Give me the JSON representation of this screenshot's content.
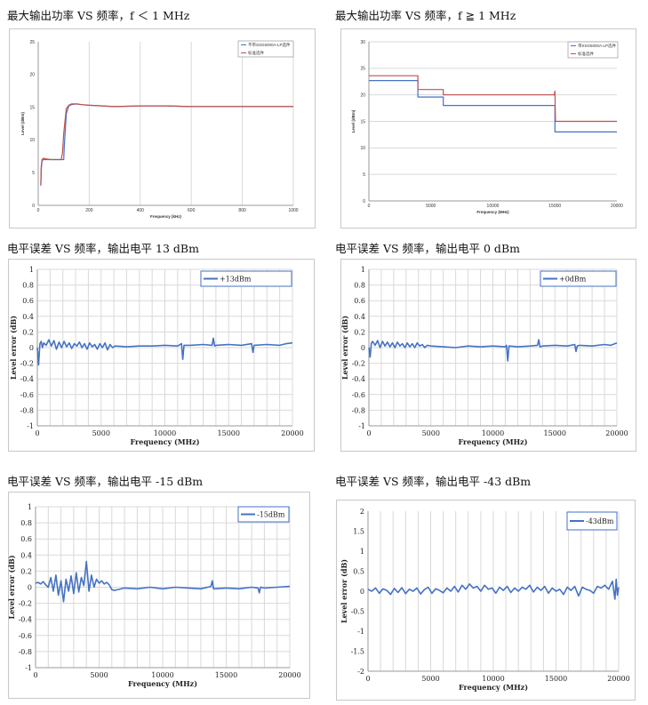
{
  "headings": [
    "最大输出功率 VS 频率，f ＜ 1 MHz",
    "最大输出功率 VS 频率，f ≧ 1 MHz",
    "电平误差 VS 频率，输出电平 13 dBm",
    "电平误差 VS 频率，输出电平 0 dBm",
    "电平误差 VS 频率，输出电平 -15 dBm",
    "电平误差 VS 频率，输出电平 -43 dBm"
  ],
  "colors": {
    "blue": "#4472c4",
    "red": "#c0504d",
    "grid": "#d9d9d9"
  },
  "chart_data": [
    {
      "type": "line",
      "title": "",
      "xlabel": "Frequency (kHz)",
      "ylabel": "Level (dBm)",
      "xlim": [
        0,
        1000
      ],
      "ylim": [
        0,
        25
      ],
      "xticks": [
        "0",
        "200",
        "400",
        "600",
        "800",
        "1000"
      ],
      "yticks": [
        "0",
        "5",
        "10",
        "15",
        "20",
        "25"
      ],
      "legend_position": "top-right",
      "grid": "vertical",
      "series": [
        {
          "name": "不带SSG5000A-LP选件",
          "color": "blue",
          "x": [
            10,
            12,
            15,
            20,
            30,
            50,
            70,
            90,
            100,
            102,
            110,
            120,
            130,
            150,
            170,
            200,
            250,
            300,
            400,
            500,
            600,
            700,
            800,
            900,
            1000
          ],
          "y": [
            3.0,
            5.5,
            6.8,
            7.0,
            7.0,
            7.0,
            7.0,
            7.0,
            7.0,
            9.0,
            14.0,
            15.2,
            15.4,
            15.5,
            15.4,
            15.3,
            15.2,
            15.1,
            15.2,
            15.2,
            15.1,
            15.1,
            15.1,
            15.1,
            15.1
          ]
        },
        {
          "name": "标准选件",
          "color": "red",
          "x": [
            10,
            12,
            15,
            20,
            30,
            50,
            70,
            90,
            95,
            100,
            110,
            120,
            130,
            150,
            170,
            200,
            250,
            300,
            400,
            500,
            600,
            700,
            800,
            900,
            1000
          ],
          "y": [
            3.2,
            6.0,
            7.0,
            7.2,
            7.1,
            7.0,
            7.0,
            7.0,
            8.0,
            11.0,
            14.8,
            15.3,
            15.5,
            15.5,
            15.4,
            15.3,
            15.2,
            15.1,
            15.2,
            15.2,
            15.1,
            15.1,
            15.1,
            15.1,
            15.1
          ]
        }
      ]
    },
    {
      "type": "line",
      "title": "",
      "xlabel": "Frequency (MHz)",
      "ylabel": "Level (dBm)",
      "xlim": [
        0,
        20000
      ],
      "ylim": [
        0,
        30
      ],
      "xticks": [
        "0",
        "5000",
        "10000",
        "15000",
        "20000"
      ],
      "yticks": [
        "0",
        "5",
        "10",
        "15",
        "20",
        "25",
        "30"
      ],
      "legend_position": "top-right",
      "grid": "horizontal",
      "series": [
        {
          "name": "带SSG5000A-LP选件",
          "color": "blue",
          "x": [
            0,
            3950,
            3950,
            6000,
            6000,
            15000,
            15000,
            20000
          ],
          "y": [
            22.7,
            22.7,
            19.6,
            19.6,
            18.0,
            18.0,
            13.0,
            13.0
          ]
        },
        {
          "name": "标准选件",
          "color": "red",
          "x": [
            0,
            3950,
            3950,
            6000,
            6000,
            14950,
            15000,
            15050,
            20000
          ],
          "y": [
            23.6,
            23.6,
            21.0,
            21.0,
            20.0,
            20.0,
            20.7,
            15.0,
            15.0
          ]
        }
      ]
    },
    {
      "type": "line",
      "title": "",
      "xlabel": "Frequency (MHz)",
      "ylabel": "Level error (dB)",
      "xlim": [
        0,
        20000
      ],
      "ylim": [
        -1,
        1
      ],
      "xticks": [
        "0",
        "5000",
        "10000",
        "15000",
        "20000"
      ],
      "yticks": [
        "1",
        "0.8",
        "0.6",
        "0.4",
        "0.2",
        "0",
        "-0.2",
        "-0.4",
        "-0.6",
        "-0.8",
        "-1"
      ],
      "legend_position": "top-right",
      "grid": "both",
      "series": [
        {
          "name": "+13dBm",
          "color": "blue",
          "x": [
            0,
            100,
            200,
            300,
            400,
            500,
            700,
            900,
            1100,
            1300,
            1500,
            1700,
            1900,
            2100,
            2300,
            2500,
            2700,
            2900,
            3100,
            3300,
            3500,
            3700,
            3900,
            4100,
            4300,
            4500,
            4700,
            4900,
            5100,
            5300,
            5500,
            5700,
            5900,
            6100,
            7000,
            8000,
            9000,
            10000,
            11000,
            11300,
            11400,
            11500,
            12000,
            13000,
            13700,
            13800,
            13900,
            14000,
            15000,
            16000,
            16800,
            16900,
            17000,
            18000,
            19000,
            19500,
            20000
          ],
          "y": [
            0.0,
            -0.22,
            0.05,
            0.08,
            0.0,
            0.06,
            0.03,
            0.1,
            0.02,
            0.09,
            -0.02,
            0.07,
            0.0,
            0.08,
            0.01,
            0.06,
            -0.01,
            0.05,
            0.02,
            0.07,
            0.0,
            0.05,
            -0.02,
            0.06,
            0.01,
            0.04,
            -0.02,
            0.05,
            0.0,
            0.06,
            -0.03,
            0.04,
            0.0,
            0.02,
            0.01,
            0.02,
            0.02,
            0.03,
            0.02,
            0.05,
            -0.15,
            0.03,
            0.03,
            0.04,
            0.03,
            0.12,
            0.02,
            0.03,
            0.04,
            0.03,
            0.05,
            -0.06,
            0.03,
            0.04,
            0.03,
            0.05,
            0.06
          ]
        }
      ]
    },
    {
      "type": "line",
      "title": "",
      "xlabel": "Frequency (MHz)",
      "ylabel": "Level error (dB)",
      "xlim": [
        0,
        20000
      ],
      "ylim": [
        -1,
        1
      ],
      "xticks": [
        "0",
        "5000",
        "10000",
        "15000",
        "20000"
      ],
      "yticks": [
        "1",
        "0.8",
        "0.6",
        "0.4",
        "0.2",
        "0",
        "-0.2",
        "-0.4",
        "-0.6",
        "-0.8",
        "-1"
      ],
      "legend_position": "top-right",
      "grid": "both",
      "series": [
        {
          "name": "+0dBm",
          "color": "blue",
          "x": [
            0,
            100,
            200,
            300,
            500,
            700,
            900,
            1100,
            1300,
            1500,
            1700,
            1900,
            2100,
            2300,
            2500,
            2700,
            2900,
            3100,
            3300,
            3500,
            3700,
            3900,
            4100,
            4300,
            4500,
            4700,
            5000,
            6000,
            7000,
            8000,
            9000,
            10000,
            11000,
            11100,
            11200,
            11300,
            12000,
            13000,
            13600,
            13700,
            13800,
            14000,
            15000,
            16000,
            16600,
            16700,
            16800,
            17000,
            18000,
            19000,
            19500,
            20000
          ],
          "y": [
            0.0,
            -0.12,
            0.06,
            0.08,
            0.03,
            0.09,
            0.0,
            0.08,
            0.02,
            0.07,
            0.01,
            0.06,
            0.0,
            0.07,
            0.02,
            0.05,
            0.0,
            0.06,
            0.01,
            0.05,
            0.0,
            0.06,
            0.02,
            0.04,
            0.0,
            0.03,
            0.02,
            0.01,
            0.0,
            0.02,
            0.01,
            0.02,
            0.01,
            0.03,
            -0.17,
            0.02,
            0.01,
            0.02,
            0.03,
            0.1,
            0.01,
            0.02,
            0.03,
            0.02,
            0.04,
            -0.05,
            0.02,
            0.03,
            0.02,
            0.04,
            0.03,
            0.06
          ]
        }
      ]
    },
    {
      "type": "line",
      "title": "",
      "xlabel": "Frequency (MHz)",
      "ylabel": "Level error (dB)",
      "xlim": [
        0,
        20000
      ],
      "ylim": [
        -1,
        1
      ],
      "xticks": [
        "0",
        "5000",
        "10000",
        "15000",
        "20000"
      ],
      "yticks": [
        "1",
        "0.8",
        "0.6",
        "0.4",
        "0.2",
        "0",
        "-0.2",
        "-0.4",
        "-0.6",
        "-0.8",
        "-1"
      ],
      "legend_position": "top-right",
      "grid": "both",
      "series": [
        {
          "name": "-15dBm",
          "color": "blue",
          "x": [
            0,
            200,
            400,
            600,
            800,
            1000,
            1200,
            1400,
            1600,
            1800,
            2000,
            2200,
            2400,
            2600,
            2800,
            3000,
            3200,
            3400,
            3600,
            3800,
            4000,
            4200,
            4400,
            4600,
            4800,
            5000,
            5200,
            5400,
            5600,
            5800,
            6000,
            6200,
            7000,
            8000,
            9000,
            10000,
            11000,
            12000,
            13000,
            13800,
            13900,
            14000,
            15000,
            16000,
            17000,
            17500,
            17600,
            17700,
            18000,
            19000,
            20000
          ],
          "y": [
            0.05,
            0.06,
            0.04,
            0.07,
            0.03,
            0.0,
            0.12,
            -0.05,
            0.15,
            -0.1,
            0.08,
            -0.18,
            0.1,
            -0.05,
            0.14,
            -0.08,
            0.18,
            -0.06,
            0.12,
            0.02,
            0.32,
            -0.05,
            0.15,
            0.0,
            0.1,
            0.05,
            0.08,
            0.04,
            0.06,
            0.03,
            -0.03,
            -0.04,
            -0.01,
            -0.02,
            0.0,
            -0.02,
            0.0,
            -0.01,
            -0.02,
            0.01,
            0.08,
            -0.02,
            -0.01,
            -0.02,
            0.0,
            -0.01,
            -0.07,
            0.0,
            -0.01,
            0.0,
            0.01
          ]
        }
      ]
    },
    {
      "type": "line",
      "title": "",
      "xlabel": "Frequency (MHz)",
      "ylabel": "Level error (dB)",
      "xlim": [
        0,
        20000
      ],
      "ylim": [
        -2,
        2
      ],
      "xticks": [
        "0",
        "5000",
        "10000",
        "15000",
        "20000"
      ],
      "yticks": [
        "2",
        "1.5",
        "1",
        "0.5",
        "0",
        "-0.5",
        "-1",
        "-1.5",
        "-2"
      ],
      "legend_position": "top-right",
      "grid": "vertical",
      "series": [
        {
          "name": "-43dBm",
          "color": "blue",
          "x": [
            0,
            300,
            600,
            900,
            1200,
            1500,
            1800,
            2100,
            2400,
            2700,
            3000,
            3300,
            3600,
            3900,
            4200,
            4500,
            4800,
            5100,
            5400,
            5700,
            6000,
            6300,
            6600,
            6900,
            7200,
            7500,
            7800,
            8100,
            8400,
            8700,
            9000,
            9300,
            9600,
            9900,
            10200,
            10500,
            10800,
            11100,
            11400,
            11700,
            12000,
            12300,
            12600,
            12900,
            13200,
            13500,
            13800,
            14100,
            14400,
            14700,
            15000,
            15300,
            15600,
            15900,
            16200,
            16500,
            16800,
            17100,
            17400,
            17700,
            18000,
            18300,
            18600,
            18900,
            19200,
            19500,
            19700,
            19800,
            19900,
            20000
          ],
          "y": [
            0.05,
            0.0,
            0.08,
            -0.05,
            0.06,
            0.02,
            -0.08,
            0.07,
            -0.03,
            0.09,
            -0.06,
            0.05,
            0.0,
            0.08,
            -0.07,
            0.04,
            0.1,
            -0.05,
            0.06,
            0.02,
            -0.04,
            0.08,
            0.0,
            0.12,
            -0.02,
            0.15,
            0.05,
            0.18,
            0.08,
            0.12,
            0.0,
            0.15,
            0.05,
            0.08,
            -0.05,
            0.1,
            0.02,
            0.12,
            -0.03,
            0.08,
            0.0,
            0.1,
            0.05,
            0.15,
            -0.02,
            0.1,
            0.02,
            0.12,
            -0.05,
            0.08,
            0.0,
            0.05,
            -0.08,
            0.1,
            0.02,
            0.12,
            -0.12,
            0.1,
            0.05,
            0.02,
            -0.05,
            0.12,
            0.08,
            0.15,
            0.05,
            0.25,
            -0.2,
            0.3,
            -0.1,
            0.1
          ]
        }
      ]
    }
  ]
}
